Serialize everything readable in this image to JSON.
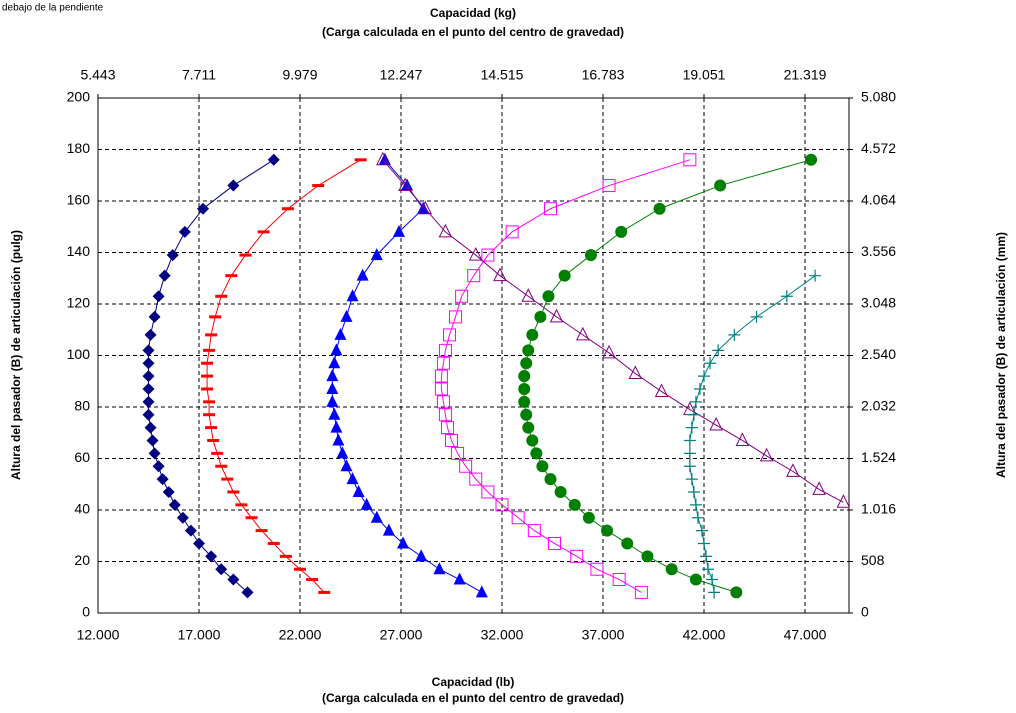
{
  "note": "debajo de la pendiente",
  "chart_data": {
    "type": "line",
    "x2_label": "Capacidad (kg)",
    "x2_sublabel": "(Carga calculada en el punto del centro de gravedad)",
    "x_label": "Capacidad (lb)",
    "x_sublabel": "(Carga calculada en el punto del centro de gravedad)",
    "y_label": "Altura del pasador (B) de articulación (pulg)",
    "y2_label": "Altura del pasador (B) de articulación (mm)",
    "xlim": [
      12000,
      49178
    ],
    "xticks": [
      {
        "value": 12000,
        "label": "12.000"
      },
      {
        "value": 17000,
        "label": "17.000"
      },
      {
        "value": 22000,
        "label": "22.000"
      },
      {
        "value": 27000,
        "label": "27.000"
      },
      {
        "value": 32000,
        "label": "32.000"
      },
      {
        "value": 37000,
        "label": "37.000"
      },
      {
        "value": 42000,
        "label": "42.000"
      },
      {
        "value": 47000,
        "label": "47.000"
      }
    ],
    "x2lim": [
      5443,
      22307
    ],
    "x2ticks": [
      {
        "value": 5443,
        "label": "5.443"
      },
      {
        "value": 7711,
        "label": "7.711"
      },
      {
        "value": 9979,
        "label": "9.979"
      },
      {
        "value": 12247,
        "label": "12.247"
      },
      {
        "value": 14515,
        "label": "14.515"
      },
      {
        "value": 16783,
        "label": "16.783"
      },
      {
        "value": 19051,
        "label": "19.051"
      },
      {
        "value": 21319,
        "label": "21.319"
      }
    ],
    "ylim": [
      0,
      200
    ],
    "yticks": [
      0,
      20,
      40,
      60,
      80,
      100,
      120,
      140,
      160,
      180,
      200
    ],
    "y2lim": [
      0,
      5080
    ],
    "y2ticks": [
      0,
      508,
      {
        "value": 1016,
        "label": "1.016"
      },
      {
        "value": 1524,
        "label": "1.524"
      },
      {
        "value": 2032,
        "label": "2.032"
      },
      {
        "value": 2540,
        "label": "2.540"
      },
      {
        "value": 3048,
        "label": "3.048"
      },
      {
        "value": 3556,
        "label": "3.556"
      },
      {
        "value": 4064,
        "label": "4.064"
      },
      {
        "value": 4572,
        "label": "4.572"
      },
      {
        "value": 5080,
        "label": "5.080"
      }
    ],
    "grid": true,
    "series": [
      {
        "color": "#000080",
        "marker": "diamond",
        "y": [
          8,
          13,
          17,
          22,
          27,
          32,
          37,
          42,
          47,
          52,
          57,
          62,
          67,
          72,
          77,
          82,
          87,
          92,
          97,
          102,
          108,
          115,
          123,
          131,
          139,
          148,
          157,
          166,
          176
        ],
        "x": [
          19400,
          18700,
          18100,
          17600,
          17000,
          16600,
          16200,
          15800,
          15500,
          15200,
          15000,
          14800,
          14700,
          14600,
          14500,
          14500,
          14500,
          14500,
          14500,
          14500,
          14600,
          14800,
          15000,
          15300,
          15700,
          16300,
          17200,
          18700,
          20700
        ]
      },
      {
        "color": "#ff0000",
        "marker": "dash",
        "y": [
          8,
          13,
          17,
          22,
          27,
          32,
          37,
          42,
          47,
          52,
          57,
          62,
          67,
          72,
          77,
          82,
          87,
          92,
          97,
          102,
          108,
          115,
          123,
          131,
          139,
          148,
          157,
          166,
          176
        ],
        "x": [
          23200,
          22600,
          22000,
          21300,
          20700,
          20100,
          19600,
          19100,
          18700,
          18400,
          18100,
          17900,
          17700,
          17600,
          17500,
          17500,
          17400,
          17400,
          17400,
          17500,
          17600,
          17800,
          18100,
          18600,
          19300,
          20200,
          21400,
          22900,
          25000
        ]
      },
      {
        "color": "#0000ff",
        "marker": "triangle",
        "y": [
          8,
          13,
          17,
          22,
          27,
          32,
          37,
          42,
          47,
          52,
          57,
          62,
          67,
          72,
          77,
          82,
          87,
          92,
          97,
          102,
          108,
          115,
          123,
          131,
          139,
          148,
          157,
          166,
          176
        ],
        "x": [
          31000,
          29900,
          28900,
          28000,
          27100,
          26400,
          25800,
          25300,
          24900,
          24600,
          24300,
          24100,
          23900,
          23800,
          23700,
          23600,
          23600,
          23600,
          23700,
          23800,
          24000,
          24300,
          24600,
          25100,
          25800,
          26900,
          28100,
          27300,
          26200
        ]
      },
      {
        "color": "#ff00ff",
        "marker": "square-open",
        "y": [
          8,
          13,
          17,
          22,
          27,
          32,
          37,
          42,
          47,
          52,
          57,
          62,
          67,
          72,
          77,
          82,
          87,
          92,
          97,
          102,
          108,
          115,
          123,
          131,
          139,
          148,
          157,
          166,
          176
        ],
        "x": [
          38900,
          37800,
          36700,
          35700,
          34600,
          33600,
          32800,
          32000,
          31300,
          30700,
          30200,
          29800,
          29500,
          29300,
          29200,
          29100,
          29000,
          29000,
          29100,
          29200,
          29400,
          29700,
          30000,
          30600,
          31300,
          32500,
          34400,
          37300,
          41300
        ]
      },
      {
        "color": "#008000",
        "marker": "circle",
        "y": [
          8,
          13,
          17,
          22,
          27,
          32,
          37,
          42,
          47,
          52,
          57,
          62,
          67,
          72,
          77,
          82,
          87,
          92,
          97,
          102,
          108,
          115,
          123,
          131,
          139,
          148,
          157,
          166,
          176
        ],
        "x": [
          43600,
          41600,
          40400,
          39200,
          38200,
          37200,
          36300,
          35600,
          34900,
          34400,
          34000,
          33700,
          33500,
          33300,
          33200,
          33100,
          33100,
          33100,
          33200,
          33300,
          33500,
          33900,
          34300,
          35100,
          36400,
          37900,
          39800,
          42800,
          47300
        ]
      },
      {
        "color": "#800080",
        "marker": "triangle-open",
        "y": [
          176,
          166,
          157,
          148,
          139,
          131,
          123,
          115,
          108,
          101,
          93,
          86,
          79,
          73,
          67,
          61,
          55,
          48,
          43
        ],
        "x": [
          26100,
          27200,
          28200,
          29200,
          30700,
          31900,
          33300,
          34700,
          36000,
          37300,
          38600,
          39900,
          41300,
          42600,
          43900,
          45100,
          46400,
          47700,
          48900
        ]
      },
      {
        "color": "#008080",
        "marker": "plus",
        "y": [
          8,
          13,
          17,
          22,
          27,
          32,
          37,
          42,
          47,
          52,
          57,
          62,
          67,
          72,
          77,
          82,
          87,
          92,
          97,
          102,
          108,
          115,
          123,
          131
        ],
        "x": [
          42500,
          42400,
          42200,
          42100,
          42000,
          41900,
          41700,
          41600,
          41500,
          41400,
          41300,
          41300,
          41300,
          41400,
          41500,
          41600,
          41800,
          42000,
          42300,
          42700,
          43500,
          44600,
          46100,
          47500
        ]
      }
    ]
  }
}
